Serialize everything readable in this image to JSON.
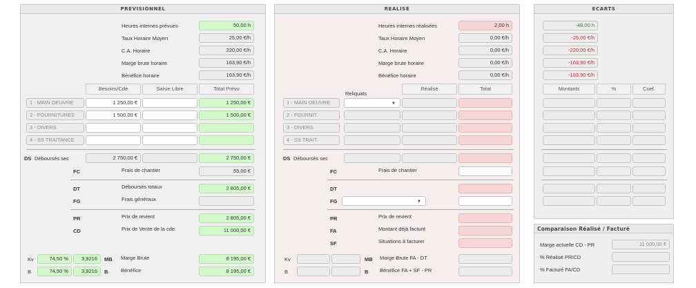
{
  "prev": {
    "title": "PREVISIONNEL",
    "top": [
      {
        "label": "Heures internes prévues",
        "value": "50,00 h"
      },
      {
        "label": "Taux Horaire Moyen",
        "value": "25,00 €/h"
      },
      {
        "label": "C.A. Horaire",
        "value": "220,00 €/h"
      },
      {
        "label": "Marge brute horaire",
        "value": "163,90 €/h"
      },
      {
        "label": "Bénéfice horaire",
        "value": "163,90 €/h"
      }
    ],
    "headers": {
      "besoins": "Besoins/Cde",
      "saisie": "Saisie Libre",
      "total": "Total Prévu"
    },
    "rows": [
      {
        "label": "1 - MAIN OEUVRE",
        "besoins": "1 250,00 €",
        "saisie": "",
        "total": "1 250,00 €"
      },
      {
        "label": "2 - FOURNITURES",
        "besoins": "1 500,00 €",
        "saisie": "",
        "total": "1 500,00 €"
      },
      {
        "label": "3 - DIVERS",
        "besoins": "",
        "saisie": "",
        "total": ""
      },
      {
        "label": "4 - SS TRAITANCE",
        "besoins": "",
        "saisie": "",
        "total": ""
      }
    ],
    "ds": {
      "code": "DS",
      "label": "Déboursés sec",
      "value": "2 750,00 €",
      "total": "2 750,00 €"
    },
    "fc": {
      "code": "FC",
      "label": "Frais de chantier",
      "value": "55,00 €"
    },
    "dt": {
      "code": "DT",
      "label": "Déboursés totaux",
      "value": "2 805,00 €"
    },
    "fg": {
      "code": "FG",
      "label": "Frais généraux",
      "value": ""
    },
    "pr": {
      "code": "PR",
      "label": "Prix de revient",
      "value": "2 805,00 €"
    },
    "cd": {
      "code": "CD",
      "label": "Prix de Vente de la cde",
      "value": "11 000,00 €"
    },
    "kv": {
      "label": "Kv",
      "pct": "74,50 %",
      "coef": "3,9216"
    },
    "kb": {
      "label": "B",
      "pct": "74,50 %",
      "coef": "3,9216"
    },
    "mb": {
      "code": "MB",
      "label": "Marge Brute",
      "value": "8 195,00 €"
    },
    "ben": {
      "code": "B",
      "label": "Bénéfice",
      "value": "8 195,00 €"
    }
  },
  "real": {
    "title": "REALISE",
    "top": [
      {
        "label": "Heures internes réalisées",
        "value": "2,00 h"
      },
      {
        "label": "Taux Horaire Moyen",
        "value": "0,00 €/h"
      },
      {
        "label": "C.A. Horaire",
        "value": "0,00 €/h"
      },
      {
        "label": "Marge brute horaire",
        "value": "0,00 €/h"
      },
      {
        "label": "Bénéfice horaire",
        "value": "0,00 €/h"
      }
    ],
    "headers": {
      "reliquats": "Reliquats",
      "realise": "Réalisé",
      "total": "Total"
    },
    "rows": [
      {
        "label": "1 - MAIN OEUVRE"
      },
      {
        "label": "2 - FOURNIT."
      },
      {
        "label": "3 - DIVERS"
      },
      {
        "label": "4 - SS TRAIT."
      }
    ],
    "ds": {
      "code": "DS",
      "label": "Déboursés sec"
    },
    "fc": {
      "code": "FC",
      "label": "Frais de chantier"
    },
    "dt": {
      "code": "DT"
    },
    "fg": {
      "code": "FG"
    },
    "pr": {
      "code": "PR",
      "label": "Prix de revient"
    },
    "fa": {
      "code": "FA",
      "label": "Montant déjà facturé"
    },
    "sf": {
      "code": "SF",
      "label": "Situations à facturer"
    },
    "kv": {
      "label": "Kv"
    },
    "kb": {
      "label": "B"
    },
    "mb": {
      "code": "MB",
      "label": "Marge Brute FA - DT"
    },
    "ben": {
      "code": "B",
      "label": "Bénéfice  FA + SF - PR"
    }
  },
  "ecarts": {
    "title": "ECARTS",
    "top": [
      "-48,00 h",
      "-25,00 €/h",
      "-220,00 €/h",
      "-163,90 €/h",
      "-163,90 €/h"
    ],
    "headers": {
      "montants": "Montants",
      "pct": "%",
      "coef": "Coef."
    }
  },
  "comp": {
    "title": "Comparaison Réalisé / Facturé",
    "rows": [
      {
        "label": "Marge actuelle CD - PR",
        "value": "11 000,00 €"
      },
      {
        "label": "% Réalisé PR/CD",
        "value": ""
      },
      {
        "label": "% Facturé FA/CD",
        "value": ""
      }
    ]
  }
}
